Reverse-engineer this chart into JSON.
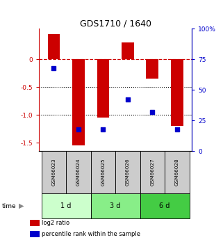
{
  "title": "GDS1710 / 1640",
  "samples": [
    "GSM66023",
    "GSM66024",
    "GSM66025",
    "GSM66026",
    "GSM66027",
    "GSM66028"
  ],
  "log2_ratio": [
    0.45,
    -1.55,
    -1.05,
    0.3,
    -0.35,
    -1.2
  ],
  "percentile_rank": [
    68,
    18,
    18,
    42,
    32,
    18
  ],
  "time_groups": [
    {
      "label": "1 d",
      "start": 0,
      "end": 2,
      "color": "#ccffcc"
    },
    {
      "label": "3 d",
      "start": 2,
      "end": 4,
      "color": "#88ee88"
    },
    {
      "label": "6 d",
      "start": 4,
      "end": 6,
      "color": "#44cc44"
    }
  ],
  "bar_color": "#cc0000",
  "dot_color": "#0000cc",
  "ylim_left": [
    -1.65,
    0.55
  ],
  "ylim_right": [
    0,
    100
  ],
  "yticks_left": [
    0,
    -0.5,
    -1.0,
    -1.5
  ],
  "yticks_right": [
    0,
    25,
    50,
    75,
    100
  ],
  "dotted_lines": [
    -0.5,
    -1.0
  ],
  "dashed_line_color": "#cc0000",
  "dotted_line_color": "#000000",
  "bar_width": 0.5,
  "bg_color": "#ffffff",
  "left_axis_color": "#cc0000",
  "right_axis_color": "#0000cc",
  "legend_items": [
    {
      "label": "log2 ratio",
      "color": "#cc0000"
    },
    {
      "label": "percentile rank within the sample",
      "color": "#0000cc"
    }
  ],
  "sample_box_color": "#cccccc",
  "n": 6
}
